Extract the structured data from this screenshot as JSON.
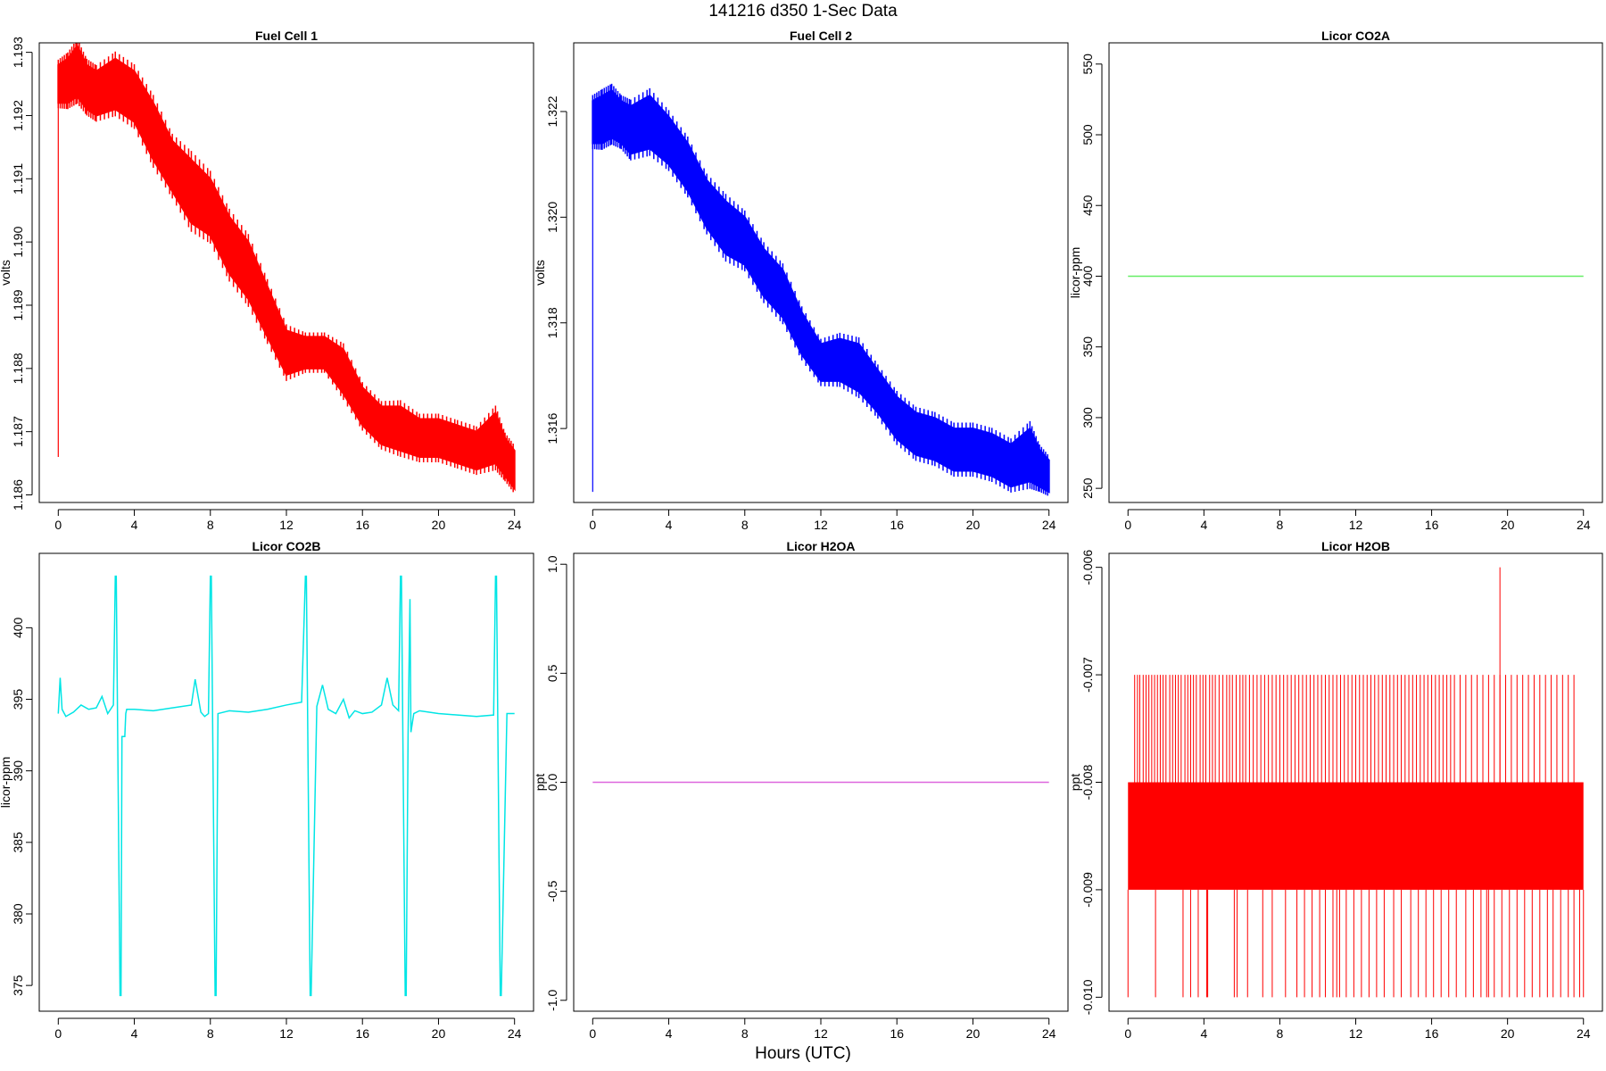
{
  "title": "141216   d350   1-Sec Data",
  "xlabel": "Hours (UTC)",
  "chart_data": [
    {
      "type": "line",
      "title": "Fuel Cell 1",
      "ylabel": "volts",
      "color": "#ff0000",
      "xlim": [
        -1,
        25
      ],
      "ylim": [
        1.18588,
        1.19315
      ],
      "xticks": [
        "0",
        "4",
        "8",
        "12",
        "16",
        "20",
        "24"
      ],
      "yticks": [
        "1.186",
        "1.187",
        "1.188",
        "1.189",
        "1.190",
        "1.191",
        "1.192",
        "1.193"
      ],
      "spike": {
        "x": 0,
        "y": 1.1866
      },
      "series": [
        {
          "x": [
            0,
            0.5,
            1,
            1.5,
            2,
            3,
            4,
            5,
            6,
            7,
            8,
            9,
            10,
            11,
            12,
            13,
            14,
            15,
            16,
            17,
            18,
            19,
            20,
            21,
            22,
            23,
            23.5,
            24
          ],
          "lo": [
            1.1922,
            1.1922,
            1.1923,
            1.1921,
            1.192,
            1.1921,
            1.1919,
            1.1913,
            1.1908,
            1.1903,
            1.1901,
            1.1895,
            1.1891,
            1.1885,
            1.1879,
            1.188,
            1.188,
            1.1876,
            1.1871,
            1.1868,
            1.1867,
            1.1866,
            1.1866,
            1.1865,
            1.1864,
            1.1865,
            1.1863,
            1.1861
          ],
          "hi": [
            1.1928,
            1.1929,
            1.1931,
            1.1928,
            1.1927,
            1.1929,
            1.1927,
            1.1922,
            1.1916,
            1.1913,
            1.191,
            1.1904,
            1.19,
            1.1893,
            1.1886,
            1.1885,
            1.1885,
            1.1883,
            1.1877,
            1.1874,
            1.1874,
            1.1872,
            1.1872,
            1.1871,
            1.187,
            1.1873,
            1.1869,
            1.1867
          ]
        }
      ]
    },
    {
      "type": "line",
      "title": "Fuel Cell 2",
      "ylabel": "volts",
      "color": "#0000ff",
      "xlim": [
        -1,
        25
      ],
      "ylim": [
        1.3146,
        1.3233
      ],
      "xticks": [
        "0",
        "4",
        "8",
        "12",
        "16",
        "20",
        "24"
      ],
      "yticks": [
        "1.316",
        "1.318",
        "1.320",
        "1.322"
      ],
      "spike": {
        "x": 0,
        "y": 1.3148
      },
      "series": [
        {
          "x": [
            0,
            0.5,
            1,
            1.5,
            2,
            3,
            4,
            5,
            6,
            7,
            8,
            9,
            10,
            11,
            12,
            13,
            14,
            15,
            16,
            17,
            18,
            19,
            20,
            21,
            22,
            23,
            23.5,
            24
          ],
          "lo": [
            1.3214,
            1.3214,
            1.3215,
            1.3214,
            1.3212,
            1.3213,
            1.321,
            1.3205,
            1.3198,
            1.3193,
            1.3191,
            1.3185,
            1.3181,
            1.3174,
            1.3169,
            1.3169,
            1.3167,
            1.3163,
            1.3158,
            1.3155,
            1.3154,
            1.3152,
            1.3152,
            1.3151,
            1.3149,
            1.315,
            1.3149,
            1.3148
          ],
          "hi": [
            1.3222,
            1.3223,
            1.3224,
            1.3222,
            1.3221,
            1.3223,
            1.3219,
            1.3214,
            1.3207,
            1.3203,
            1.32,
            1.3194,
            1.319,
            1.3182,
            1.3176,
            1.3177,
            1.3176,
            1.3171,
            1.3166,
            1.3163,
            1.3162,
            1.316,
            1.316,
            1.3159,
            1.3157,
            1.316,
            1.3156,
            1.3154
          ]
        }
      ]
    },
    {
      "type": "line",
      "title": "Licor CO2A",
      "ylabel": "licor-ppm",
      "color": "#66ee66",
      "xlim": [
        -1,
        25
      ],
      "ylim": [
        240,
        565
      ],
      "xticks": [
        "0",
        "4",
        "8",
        "12",
        "16",
        "20",
        "24"
      ],
      "yticks": [
        "250",
        "300",
        "350",
        "400",
        "450",
        "500",
        "550"
      ],
      "series": [
        {
          "x": [
            0,
            24
          ],
          "y": [
            400,
            400
          ]
        }
      ]
    },
    {
      "type": "line",
      "title": "Licor CO2B",
      "ylabel": "licor-ppm",
      "color": "#00e5e5",
      "xlim": [
        -1,
        25
      ],
      "ylim": [
        373.2,
        405.2
      ],
      "xticks": [
        "0",
        "4",
        "8",
        "12",
        "16",
        "20",
        "24"
      ],
      "yticks": [
        "375",
        "380",
        "385",
        "390",
        "395",
        "400"
      ],
      "series": [
        {
          "x": [
            0,
            0.1,
            0.2,
            0.4,
            0.8,
            1.2,
            1.6,
            2.0,
            2.3,
            2.6,
            2.9,
            3.0,
            3.05,
            3.25,
            3.3,
            3.35,
            3.5,
            3.55,
            3.6,
            4.0,
            5,
            6,
            7,
            7.2,
            7.5,
            7.7,
            7.9,
            8.0,
            8.05,
            8.25,
            8.3,
            8.4,
            9,
            10,
            11,
            12,
            12.8,
            13.0,
            13.05,
            13.25,
            13.3,
            13.6,
            13.9,
            14.2,
            14.6,
            15.0,
            15.3,
            15.6,
            16.0,
            16.5,
            17.0,
            17.3,
            17.6,
            17.9,
            18.0,
            18.05,
            18.25,
            18.3,
            18.4,
            18.5,
            18.55,
            18.7,
            19,
            20,
            21,
            22,
            22.9,
            23.0,
            23.05,
            23.25,
            23.3,
            23.6,
            24
          ],
          "y": [
            394.0,
            396.5,
            394.3,
            393.8,
            394.1,
            394.6,
            394.3,
            394.4,
            395.2,
            394.0,
            394.6,
            403.6,
            403.6,
            374.3,
            374.3,
            392.4,
            392.4,
            394.0,
            394.3,
            394.3,
            394.2,
            394.4,
            394.6,
            396.4,
            394.1,
            393.8,
            394.0,
            403.6,
            403.6,
            374.3,
            374.3,
            394.0,
            394.2,
            394.1,
            394.3,
            394.6,
            394.8,
            403.6,
            403.6,
            374.3,
            374.3,
            394.5,
            396.0,
            394.3,
            394.0,
            395.0,
            393.7,
            394.2,
            394.0,
            394.1,
            394.6,
            396.5,
            394.6,
            394.2,
            403.6,
            403.6,
            374.3,
            374.3,
            392.5,
            402.0,
            392.7,
            394.0,
            394.2,
            394.0,
            393.9,
            393.8,
            393.9,
            403.6,
            403.6,
            374.3,
            374.3,
            394.0,
            394.0
          ]
        }
      ]
    },
    {
      "type": "line",
      "title": "Licor H2OA",
      "ylabel": "ppt",
      "color": "#dd66dd",
      "xlim": [
        -1,
        25
      ],
      "ylim": [
        -1.05,
        1.05
      ],
      "xticks": [
        "0",
        "4",
        "8",
        "12",
        "16",
        "20",
        "24"
      ],
      "yticks": [
        "-1.0",
        "-0.5",
        "0.0",
        "0.5",
        "1.0"
      ],
      "series": [
        {
          "x": [
            0,
            24
          ],
          "y": [
            0,
            0
          ]
        }
      ]
    },
    {
      "type": "line",
      "title": "Licor H2OB",
      "ylabel": "ppt",
      "color": "#ff0000",
      "xlim": [
        -1,
        25
      ],
      "ylim": [
        -0.01013,
        -0.00587
      ],
      "xticks": [
        "0",
        "4",
        "8",
        "12",
        "16",
        "20",
        "24"
      ],
      "yticks": [
        "-0.010",
        "-0.009",
        "-0.008",
        "-0.007",
        "-0.006"
      ],
      "band": {
        "x": [
          0,
          24
        ],
        "lo": -0.009,
        "hi": -0.008
      },
      "upper_spikes": {
        "to": -0.007,
        "x": [
          0.35,
          0.5,
          0.62,
          0.8,
          0.95,
          1.1,
          1.25,
          1.4,
          1.55,
          1.7,
          1.85,
          2.0,
          2.2,
          2.35,
          2.5,
          2.65,
          2.8,
          3.0,
          3.15,
          3.3,
          3.45,
          3.6,
          3.8,
          3.95,
          4.1,
          4.3,
          4.45,
          4.6,
          4.8,
          5.0,
          5.2,
          5.35,
          5.5,
          5.7,
          5.9,
          6.05,
          6.2,
          6.4,
          6.6,
          6.8,
          7.0,
          7.2,
          7.4,
          7.6,
          7.8,
          8.0,
          8.2,
          8.4,
          8.6,
          8.8,
          9.0,
          9.2,
          9.4,
          9.6,
          9.8,
          10.0,
          10.2,
          10.4,
          10.6,
          10.8,
          11.0,
          11.2,
          11.4,
          11.6,
          11.8,
          12.0,
          12.2,
          12.4,
          12.6,
          12.8,
          13.0,
          13.2,
          13.4,
          13.6,
          13.8,
          14.0,
          14.2,
          14.4,
          14.6,
          14.8,
          15.0,
          15.2,
          15.4,
          15.6,
          15.8,
          16.0,
          16.2,
          16.4,
          16.6,
          16.8,
          17.0,
          17.2,
          17.5,
          17.8,
          18.1,
          18.4,
          18.7,
          19.0,
          19.3,
          19.6,
          19.9,
          20.2,
          20.5,
          20.8,
          21.1,
          21.4,
          21.7,
          22.0,
          22.3,
          22.6,
          22.9,
          23.2,
          23.5
        ]
      },
      "top_spike": {
        "x": 19.6,
        "y": -0.006
      },
      "lower_spikes": {
        "to": -0.01,
        "x": [
          0.0,
          1.45,
          2.9,
          3.3,
          3.7,
          4.15,
          4.2,
          5.6,
          5.75,
          6.3,
          7.1,
          7.6,
          8.3,
          8.9,
          9.3,
          9.7,
          10.1,
          10.4,
          10.8,
          11.0,
          11.15,
          11.5,
          11.9,
          12.3,
          12.7,
          13.1,
          13.5,
          14.0,
          14.4,
          14.9,
          15.3,
          15.7,
          16.1,
          16.5,
          16.9,
          17.3,
          17.8,
          18.2,
          18.6,
          18.9,
          19.0,
          19.3,
          19.7,
          20.1,
          20.5,
          20.9,
          21.3,
          21.7,
          22.1,
          22.4,
          22.8,
          23.2,
          23.5,
          23.8,
          24.0
        ]
      }
    }
  ]
}
